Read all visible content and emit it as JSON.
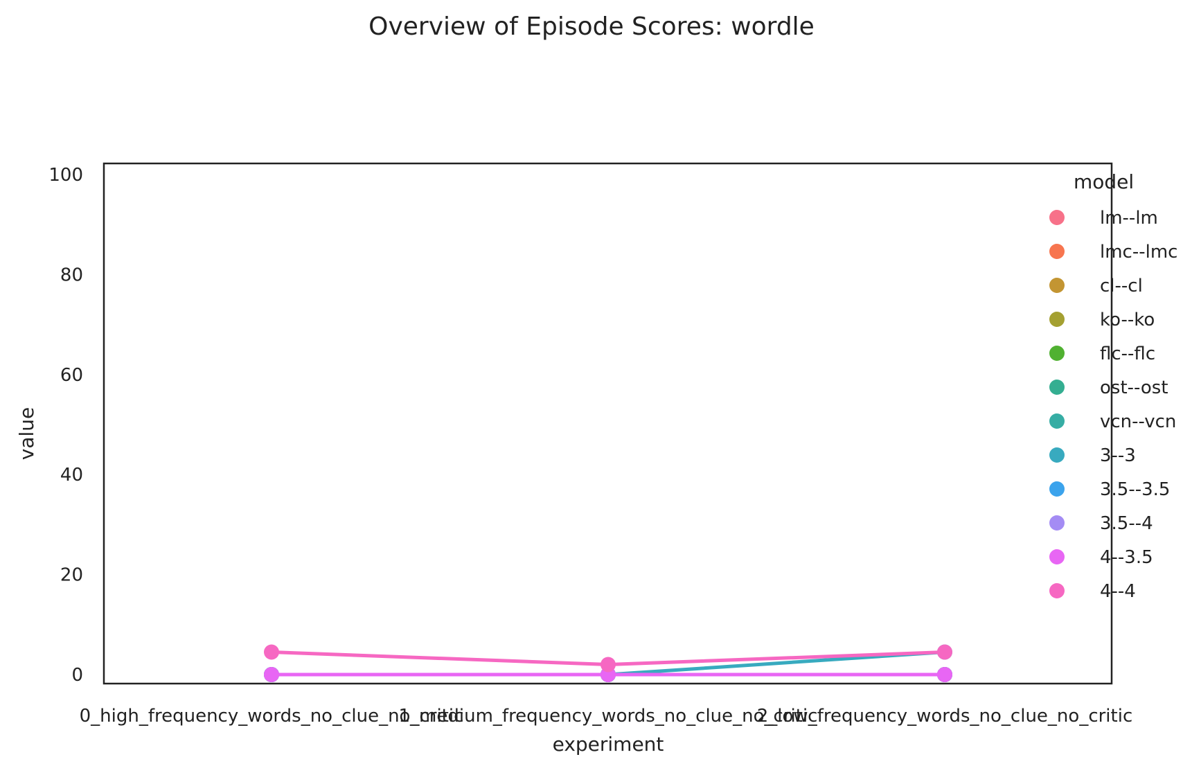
{
  "chart_data": {
    "type": "line",
    "title": "Overview of Episode Scores: wordle",
    "xlabel": "experiment",
    "ylabel": "value",
    "ylim": [
      -2,
      102
    ],
    "yticks": [
      0,
      20,
      40,
      60,
      80,
      100
    ],
    "categories": [
      "0_high_frequency_words_no_clue_no_critic",
      "1_medium_frequency_words_no_clue_no_critic",
      "2_low_frequency_words_no_clue_no_critic"
    ],
    "grid": false,
    "legend": {
      "title": "model",
      "placement": "right"
    },
    "series": [
      {
        "name": "lm--lm",
        "color": "#f77189",
        "values": [
          0,
          0,
          0
        ]
      },
      {
        "name": "lmc--lmc",
        "color": "#f7754f",
        "values": [
          0,
          0,
          0
        ]
      },
      {
        "name": "cl--cl",
        "color": "#c39532",
        "values": [
          0,
          0,
          0
        ]
      },
      {
        "name": "ko--ko",
        "color": "#a4a031",
        "values": [
          0,
          0,
          0
        ]
      },
      {
        "name": "flc--flc",
        "color": "#50b131",
        "values": [
          0,
          0,
          0
        ]
      },
      {
        "name": "ost--ost",
        "color": "#34ae91",
        "values": [
          0,
          0,
          0
        ]
      },
      {
        "name": "vcn--vcn",
        "color": "#36ada4",
        "values": [
          0,
          0,
          0
        ]
      },
      {
        "name": "3--3",
        "color": "#38aabf",
        "values": [
          0,
          0,
          4.5
        ]
      },
      {
        "name": "3.5--3.5",
        "color": "#3ba3ec",
        "values": [
          0,
          0,
          0
        ]
      },
      {
        "name": "3.5--4",
        "color": "#a48cf4",
        "values": [
          0,
          0,
          0
        ]
      },
      {
        "name": "4--3.5",
        "color": "#e866f4",
        "values": [
          0,
          0,
          0
        ]
      },
      {
        "name": "4--4",
        "color": "#f668c2",
        "values": [
          4.5,
          2,
          4.5
        ]
      }
    ]
  }
}
